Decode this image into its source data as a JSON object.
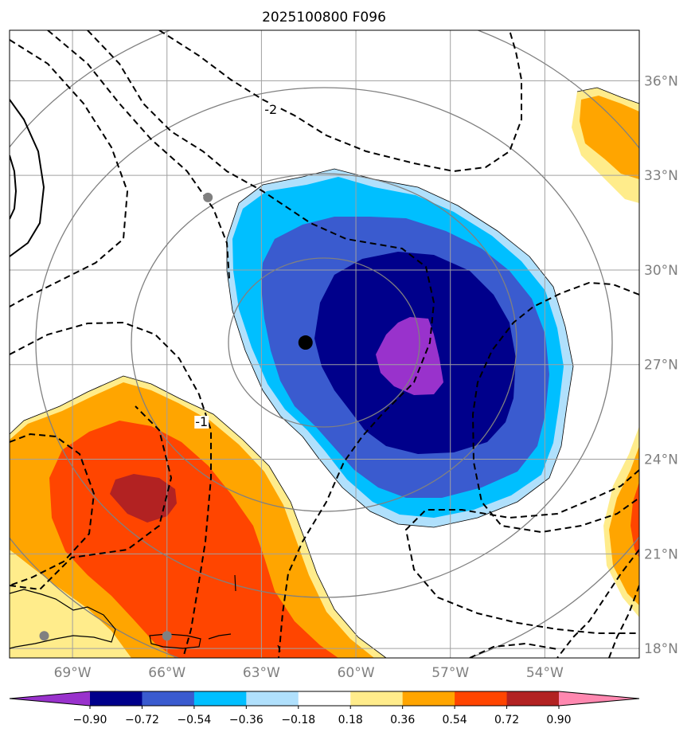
{
  "title": "2025100800 F096",
  "map": {
    "lon_range": [
      -71,
      -51
    ],
    "lat_range": [
      17.7,
      37.6
    ],
    "lon_ticks": [
      {
        "value": -69,
        "label": "69°W"
      },
      {
        "value": -66,
        "label": "66°W"
      },
      {
        "value": -63,
        "label": "63°W"
      },
      {
        "value": -60,
        "label": "60°W"
      },
      {
        "value": -57,
        "label": "57°W"
      },
      {
        "value": -54,
        "label": "54°W"
      }
    ],
    "lat_ticks": [
      {
        "value": 18,
        "label": "18°N"
      },
      {
        "value": 21,
        "label": "21°N"
      },
      {
        "value": 24,
        "label": "24°N"
      },
      {
        "value": 27,
        "label": "27°N"
      },
      {
        "value": 30,
        "label": "30°N"
      },
      {
        "value": 33,
        "label": "33°N"
      },
      {
        "value": 36,
        "label": "36°N"
      }
    ],
    "contour_labels": [
      {
        "text": "-2",
        "lon": -62.7,
        "lat": 35.0
      },
      {
        "text": "-1",
        "lon": -64.9,
        "lat": 25.1
      }
    ],
    "center_marker": {
      "lon": -61.6,
      "lat": 27.7
    },
    "station_markers": [
      {
        "lon": -64.7,
        "lat": 32.3
      },
      {
        "lon": -69.9,
        "lat": 18.4
      },
      {
        "lon": -66.0,
        "lat": 18.4
      }
    ]
  },
  "colorbar": {
    "ticks": [
      "−0.90",
      "−0.72",
      "−0.54",
      "−0.36",
      "−0.18",
      "0.18",
      "0.36",
      "0.54",
      "0.72",
      "0.90"
    ],
    "colors": [
      "#9932cc",
      "#00008b",
      "#3a5bcf",
      "#00bfff",
      "#b0e0fc",
      "#ffffff",
      "#ffec8b",
      "#ffa500",
      "#ff4500",
      "#b22222",
      "#ff88b0"
    ]
  },
  "colors": {
    "grid": "#a0a0a0",
    "range_rings": "#808080",
    "tick_label": "#7f7f7f"
  }
}
